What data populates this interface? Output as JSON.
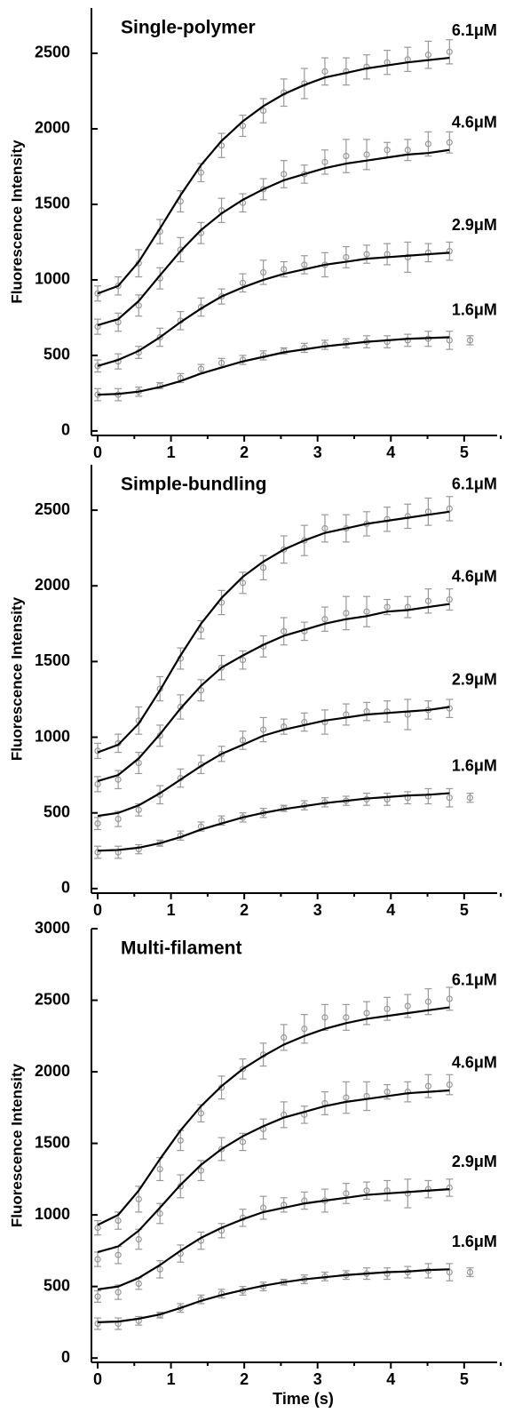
{
  "chart_data": [
    {
      "type": "scatter-fit",
      "title": "Single-polymer",
      "ylabel": "Fluorescence Intensity",
      "xlim": [
        -0.085,
        5.45
      ],
      "ylim": [
        -30,
        2800
      ],
      "xticks": [
        0,
        1,
        2,
        3,
        4,
        5
      ],
      "yticks": [
        0,
        500,
        1000,
        1500,
        2000,
        2500
      ],
      "fit_x": [
        0,
        0.28,
        0.56,
        0.85,
        1.13,
        1.41,
        1.69,
        1.98,
        2.26,
        2.54,
        2.82,
        3.1,
        3.39,
        3.67,
        3.95,
        4.23,
        4.51,
        4.8
      ],
      "series": [
        {
          "name": "6.1μM",
          "x": [
            0,
            0.28,
            0.56,
            0.85,
            1.13,
            1.41,
            1.69,
            1.98,
            2.26,
            2.54,
            2.82,
            3.1,
            3.39,
            3.67,
            3.95,
            4.23,
            4.51,
            4.8
          ],
          "values": [
            910,
            960,
            1110,
            1320,
            1520,
            1710,
            1890,
            2020,
            2120,
            2240,
            2300,
            2380,
            2380,
            2410,
            2440,
            2460,
            2490,
            2510
          ],
          "errors": [
            50,
            60,
            90,
            80,
            70,
            60,
            80,
            70,
            80,
            90,
            100,
            90,
            90,
            80,
            80,
            80,
            90,
            80
          ],
          "fit": [
            910,
            960,
            1120,
            1340,
            1560,
            1760,
            1920,
            2050,
            2150,
            2230,
            2290,
            2340,
            2370,
            2400,
            2420,
            2440,
            2455,
            2470
          ]
        },
        {
          "name": "4.6μM",
          "x": [
            0,
            0.28,
            0.56,
            0.85,
            1.13,
            1.41,
            1.69,
            1.98,
            2.26,
            2.54,
            2.82,
            3.1,
            3.39,
            3.67,
            3.95,
            4.23,
            4.51,
            4.8
          ],
          "values": [
            690,
            720,
            830,
            1010,
            1200,
            1310,
            1460,
            1510,
            1600,
            1700,
            1700,
            1780,
            1820,
            1830,
            1860,
            1860,
            1900,
            1910
          ],
          "errors": [
            50,
            60,
            70,
            70,
            80,
            70,
            80,
            60,
            70,
            90,
            60,
            80,
            110,
            100,
            50,
            70,
            80,
            70
          ],
          "fit": [
            700,
            740,
            860,
            1030,
            1190,
            1330,
            1440,
            1530,
            1600,
            1660,
            1700,
            1740,
            1770,
            1790,
            1810,
            1830,
            1840,
            1860
          ]
        },
        {
          "name": "2.9μM",
          "x": [
            0,
            0.28,
            0.56,
            0.85,
            1.13,
            1.41,
            1.69,
            1.98,
            2.26,
            2.54,
            2.82,
            3.1,
            3.39,
            3.67,
            3.95,
            4.23,
            4.51,
            4.8
          ],
          "values": [
            430,
            460,
            520,
            620,
            730,
            820,
            890,
            980,
            1050,
            1070,
            1100,
            1100,
            1150,
            1170,
            1170,
            1150,
            1180,
            1190
          ],
          "errors": [
            40,
            50,
            40,
            60,
            60,
            60,
            50,
            60,
            80,
            50,
            60,
            80,
            70,
            60,
            70,
            100,
            60,
            60
          ],
          "fit": [
            430,
            470,
            530,
            620,
            720,
            810,
            890,
            950,
            1000,
            1040,
            1070,
            1100,
            1120,
            1140,
            1150,
            1160,
            1170,
            1180
          ]
        },
        {
          "name": "1.6μM",
          "x": [
            0,
            0.28,
            0.56,
            0.85,
            1.13,
            1.41,
            1.69,
            1.98,
            2.26,
            2.54,
            2.82,
            3.1,
            3.39,
            3.67,
            3.95,
            4.23,
            4.51,
            4.8,
            5.08
          ],
          "values": [
            240,
            240,
            260,
            300,
            350,
            410,
            450,
            470,
            500,
            530,
            550,
            570,
            580,
            590,
            590,
            600,
            610,
            600,
            600
          ],
          "errors": [
            40,
            40,
            30,
            20,
            30,
            30,
            30,
            30,
            30,
            20,
            30,
            30,
            30,
            40,
            40,
            40,
            50,
            60,
            30
          ],
          "fit": [
            240,
            245,
            260,
            290,
            330,
            380,
            420,
            460,
            490,
            520,
            540,
            560,
            575,
            590,
            600,
            610,
            615,
            620
          ]
        }
      ]
    },
    {
      "type": "scatter-fit",
      "title": "Simple-bundling",
      "ylabel": "Fluorescence Intensity",
      "xlim": [
        -0.085,
        5.45
      ],
      "ylim": [
        -30,
        2800
      ],
      "xticks": [
        0,
        1,
        2,
        3,
        4,
        5
      ],
      "yticks": [
        0,
        500,
        1000,
        1500,
        2000,
        2500
      ],
      "fit_x": [
        0,
        0.28,
        0.56,
        0.85,
        1.13,
        1.41,
        1.69,
        1.98,
        2.26,
        2.54,
        2.82,
        3.1,
        3.39,
        3.67,
        3.95,
        4.23,
        4.51,
        4.8
      ],
      "series": [
        {
          "name": "6.1μM",
          "x": [
            0,
            0.28,
            0.56,
            0.85,
            1.13,
            1.41,
            1.69,
            1.98,
            2.26,
            2.54,
            2.82,
            3.1,
            3.39,
            3.67,
            3.95,
            4.23,
            4.51,
            4.8
          ],
          "values": [
            910,
            960,
            1110,
            1320,
            1520,
            1710,
            1890,
            2020,
            2120,
            2240,
            2300,
            2380,
            2380,
            2410,
            2440,
            2460,
            2490,
            2510
          ],
          "errors": [
            50,
            60,
            90,
            80,
            70,
            60,
            80,
            70,
            80,
            90,
            100,
            90,
            90,
            80,
            80,
            80,
            90,
            80
          ],
          "fit": [
            900,
            950,
            1090,
            1310,
            1540,
            1750,
            1920,
            2060,
            2160,
            2240,
            2300,
            2350,
            2380,
            2410,
            2430,
            2450,
            2470,
            2490
          ]
        },
        {
          "name": "4.6μM",
          "x": [
            0,
            0.28,
            0.56,
            0.85,
            1.13,
            1.41,
            1.69,
            1.98,
            2.26,
            2.54,
            2.82,
            3.1,
            3.39,
            3.67,
            3.95,
            4.23,
            4.51,
            4.8
          ],
          "values": [
            690,
            720,
            830,
            1010,
            1200,
            1310,
            1460,
            1510,
            1600,
            1700,
            1700,
            1780,
            1820,
            1830,
            1860,
            1860,
            1900,
            1910
          ],
          "errors": [
            50,
            60,
            70,
            70,
            80,
            70,
            80,
            60,
            70,
            90,
            60,
            80,
            110,
            100,
            50,
            70,
            80,
            70
          ],
          "fit": [
            710,
            750,
            860,
            1020,
            1190,
            1340,
            1460,
            1540,
            1610,
            1670,
            1710,
            1750,
            1780,
            1800,
            1830,
            1840,
            1860,
            1880
          ]
        },
        {
          "name": "2.9μM",
          "x": [
            0,
            0.28,
            0.56,
            0.85,
            1.13,
            1.41,
            1.69,
            1.98,
            2.26,
            2.54,
            2.82,
            3.1,
            3.39,
            3.67,
            3.95,
            4.23,
            4.51,
            4.8
          ],
          "values": [
            430,
            460,
            520,
            620,
            730,
            820,
            890,
            980,
            1050,
            1070,
            1100,
            1100,
            1150,
            1170,
            1170,
            1150,
            1180,
            1190
          ],
          "errors": [
            40,
            50,
            40,
            60,
            60,
            60,
            50,
            60,
            80,
            50,
            60,
            80,
            70,
            60,
            70,
            100,
            60,
            60
          ],
          "fit": [
            480,
            500,
            550,
            630,
            720,
            810,
            890,
            950,
            1010,
            1050,
            1080,
            1110,
            1130,
            1150,
            1160,
            1170,
            1180,
            1200
          ]
        },
        {
          "name": "1.6μM",
          "x": [
            0,
            0.28,
            0.56,
            0.85,
            1.13,
            1.41,
            1.69,
            1.98,
            2.26,
            2.54,
            2.82,
            3.1,
            3.39,
            3.67,
            3.95,
            4.23,
            4.51,
            4.8,
            5.08
          ],
          "values": [
            240,
            240,
            260,
            300,
            350,
            410,
            450,
            470,
            500,
            530,
            550,
            570,
            580,
            590,
            590,
            600,
            610,
            600,
            600
          ],
          "errors": [
            40,
            40,
            30,
            20,
            30,
            30,
            30,
            30,
            30,
            20,
            30,
            30,
            30,
            40,
            40,
            40,
            50,
            60,
            30
          ],
          "fit": [
            250,
            255,
            270,
            300,
            340,
            390,
            430,
            470,
            500,
            525,
            545,
            565,
            580,
            595,
            605,
            615,
            620,
            630
          ]
        }
      ]
    },
    {
      "type": "scatter-fit",
      "title": "Multi-filament",
      "ylabel": "Fluorescence Intensity",
      "xlabel": "Time (s)",
      "xlim": [
        -0.085,
        5.45
      ],
      "ylim": [
        -30,
        3000
      ],
      "xticks": [
        0,
        1,
        2,
        3,
        4,
        5
      ],
      "yticks": [
        0,
        500,
        1000,
        1500,
        2000,
        2500,
        3000
      ],
      "fit_x": [
        0,
        0.28,
        0.56,
        0.85,
        1.13,
        1.41,
        1.69,
        1.98,
        2.26,
        2.54,
        2.82,
        3.1,
        3.39,
        3.67,
        3.95,
        4.23,
        4.51,
        4.8
      ],
      "series": [
        {
          "name": "6.1μM",
          "x": [
            0,
            0.28,
            0.56,
            0.85,
            1.13,
            1.41,
            1.69,
            1.98,
            2.26,
            2.54,
            2.82,
            3.1,
            3.39,
            3.67,
            3.95,
            4.23,
            4.51,
            4.8
          ],
          "values": [
            910,
            960,
            1110,
            1320,
            1520,
            1710,
            1890,
            2020,
            2120,
            2240,
            2300,
            2380,
            2380,
            2410,
            2440,
            2460,
            2490,
            2510
          ],
          "errors": [
            50,
            60,
            90,
            80,
            70,
            60,
            80,
            70,
            80,
            90,
            100,
            90,
            90,
            80,
            80,
            80,
            90,
            80
          ],
          "fit": [
            930,
            1000,
            1170,
            1390,
            1590,
            1760,
            1900,
            2020,
            2110,
            2190,
            2250,
            2300,
            2340,
            2370,
            2390,
            2410,
            2430,
            2450
          ]
        },
        {
          "name": "4.6μM",
          "x": [
            0,
            0.28,
            0.56,
            0.85,
            1.13,
            1.41,
            1.69,
            1.98,
            2.26,
            2.54,
            2.82,
            3.1,
            3.39,
            3.67,
            3.95,
            4.23,
            4.51,
            4.8
          ],
          "values": [
            690,
            720,
            830,
            1010,
            1200,
            1310,
            1460,
            1510,
            1600,
            1700,
            1700,
            1780,
            1820,
            1830,
            1860,
            1860,
            1900,
            1910
          ],
          "errors": [
            50,
            60,
            70,
            70,
            80,
            70,
            80,
            60,
            70,
            90,
            60,
            80,
            110,
            100,
            50,
            70,
            80,
            70
          ],
          "fit": [
            740,
            780,
            890,
            1050,
            1210,
            1350,
            1460,
            1550,
            1620,
            1680,
            1720,
            1760,
            1790,
            1810,
            1830,
            1850,
            1860,
            1870
          ]
        },
        {
          "name": "2.9μM",
          "x": [
            0,
            0.28,
            0.56,
            0.85,
            1.13,
            1.41,
            1.69,
            1.98,
            2.26,
            2.54,
            2.82,
            3.1,
            3.39,
            3.67,
            3.95,
            4.23,
            4.51,
            4.8
          ],
          "values": [
            430,
            460,
            520,
            620,
            730,
            820,
            890,
            980,
            1050,
            1070,
            1100,
            1100,
            1150,
            1170,
            1170,
            1150,
            1180,
            1190
          ],
          "errors": [
            40,
            50,
            40,
            60,
            60,
            60,
            50,
            60,
            80,
            50,
            60,
            80,
            70,
            60,
            70,
            100,
            60,
            60
          ],
          "fit": [
            480,
            500,
            560,
            650,
            750,
            840,
            910,
            970,
            1020,
            1050,
            1080,
            1100,
            1120,
            1140,
            1150,
            1160,
            1170,
            1180
          ]
        },
        {
          "name": "1.6μM",
          "x": [
            0,
            0.28,
            0.56,
            0.85,
            1.13,
            1.41,
            1.69,
            1.98,
            2.26,
            2.54,
            2.82,
            3.1,
            3.39,
            3.67,
            3.95,
            4.23,
            4.51,
            4.8,
            5.08
          ],
          "values": [
            240,
            240,
            260,
            300,
            350,
            410,
            450,
            470,
            500,
            530,
            550,
            570,
            580,
            590,
            590,
            600,
            610,
            600,
            600
          ],
          "errors": [
            40,
            40,
            30,
            20,
            30,
            30,
            30,
            30,
            30,
            20,
            30,
            30,
            30,
            40,
            40,
            40,
            50,
            60,
            30
          ],
          "fit": [
            250,
            255,
            275,
            305,
            350,
            400,
            440,
            475,
            505,
            530,
            550,
            565,
            580,
            590,
            600,
            605,
            615,
            620
          ]
        }
      ]
    }
  ]
}
